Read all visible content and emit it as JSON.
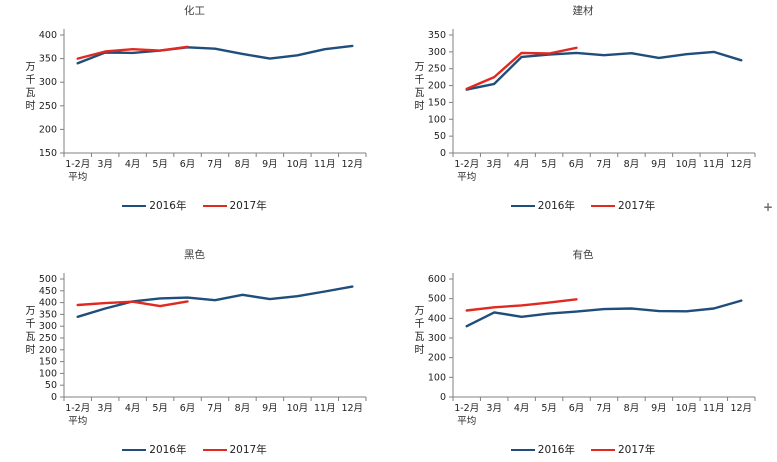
{
  "page": {
    "background": "#ffffff",
    "cursor_glyph": "+"
  },
  "colors": {
    "series_2016": "#1f4e7b",
    "series_2017": "#e02a20",
    "axis": "#808080",
    "tick_text": "#1f1f1f",
    "title_text": "#3f3f3f"
  },
  "chart_data": [
    {
      "type": "line",
      "title": "化工",
      "ylabel": "万千瓦时",
      "x_categories": [
        "1-2月\n平均",
        "3月",
        "4月",
        "5月",
        "6月",
        "7月",
        "8月",
        "9月",
        "10月",
        "11月",
        "12月"
      ],
      "ylim": [
        150,
        400
      ],
      "ytick_step": 50,
      "grid": false,
      "legend_position": "bottom",
      "series": [
        {
          "name": "2016年",
          "color": "#1f4e7b",
          "values": [
            340,
            363,
            362,
            367,
            374,
            371,
            360,
            350,
            357,
            370,
            377
          ]
        },
        {
          "name": "2017年",
          "color": "#e02a20",
          "values": [
            350,
            365,
            370,
            367,
            375
          ]
        }
      ]
    },
    {
      "type": "line",
      "title": "建材",
      "ylabel": "万千瓦时",
      "x_categories": [
        "1-2月\n平均",
        "3月",
        "4月",
        "5月",
        "6月",
        "7月",
        "8月",
        "9月",
        "10月",
        "11月",
        "12月"
      ],
      "ylim": [
        0,
        350
      ],
      "ytick_step": 50,
      "grid": false,
      "legend_position": "bottom",
      "series": [
        {
          "name": "2016年",
          "color": "#1f4e7b",
          "values": [
            188,
            205,
            285,
            292,
            297,
            290,
            296,
            282,
            293,
            300,
            275
          ]
        },
        {
          "name": "2017年",
          "color": "#e02a20",
          "values": [
            190,
            225,
            297,
            295,
            312
          ]
        }
      ]
    },
    {
      "type": "line",
      "title": "黑色",
      "ylabel": "万千瓦时",
      "x_categories": [
        "1-2月\n平均",
        "3月",
        "4月",
        "5月",
        "6月",
        "7月",
        "8月",
        "9月",
        "10月",
        "11月",
        "12月"
      ],
      "ylim": [
        0,
        500
      ],
      "ytick_step": 50,
      "grid": false,
      "legend_position": "bottom",
      "series": [
        {
          "name": "2016年",
          "color": "#1f4e7b",
          "values": [
            340,
            375,
            405,
            418,
            421,
            410,
            433,
            415,
            427,
            447,
            468
          ]
        },
        {
          "name": "2017年",
          "color": "#e02a20",
          "values": [
            390,
            398,
            404,
            385,
            405
          ]
        }
      ]
    },
    {
      "type": "line",
      "title": "有色",
      "ylabel": "万千瓦时",
      "x_categories": [
        "1-2月\n平均",
        "3月",
        "4月",
        "5月",
        "6月",
        "7月",
        "8月",
        "9月",
        "10月",
        "11月",
        "12月"
      ],
      "ylim": [
        0,
        600
      ],
      "ytick_step": 100,
      "grid": false,
      "legend_position": "bottom",
      "series": [
        {
          "name": "2016年",
          "color": "#1f4e7b",
          "values": [
            360,
            430,
            408,
            424,
            434,
            447,
            450,
            437,
            436,
            450,
            490
          ]
        },
        {
          "name": "2017年",
          "color": "#e02a20",
          "values": [
            440,
            456,
            466,
            480,
            497
          ]
        }
      ]
    }
  ]
}
